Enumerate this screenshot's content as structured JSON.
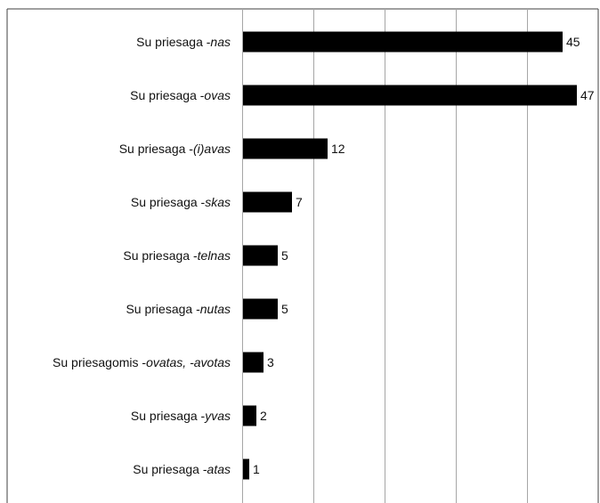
{
  "chart_data": {
    "type": "bar",
    "orientation": "horizontal",
    "title": "",
    "xlabel": "",
    "ylabel": "",
    "xlim": [
      0,
      50
    ],
    "grid": "vertical",
    "legend": "none",
    "categories": [
      {
        "prefix": "Su priesaga -",
        "suffix": "nas"
      },
      {
        "prefix": "Su priesaga -",
        "suffix": "ovas"
      },
      {
        "prefix": "Su priesaga -",
        "suffix": "(i)avas"
      },
      {
        "prefix": "Su priesaga -",
        "suffix": "skas"
      },
      {
        "prefix": "Su priesaga -",
        "suffix": "telnas"
      },
      {
        "prefix": "Su priesaga -",
        "suffix": "nutas"
      },
      {
        "prefix": "Su priesagomis -",
        "suffix": "ovatas, -avotas"
      },
      {
        "prefix": "Su priesaga -",
        "suffix": "yvas"
      },
      {
        "prefix": "Su priesaga -",
        "suffix": "atas"
      }
    ],
    "values": [
      45,
      47,
      12,
      7,
      5,
      5,
      3,
      2,
      1
    ],
    "colors": {
      "bar": "#000000",
      "grid": "#a6a6a6",
      "frame": "#404040"
    }
  }
}
